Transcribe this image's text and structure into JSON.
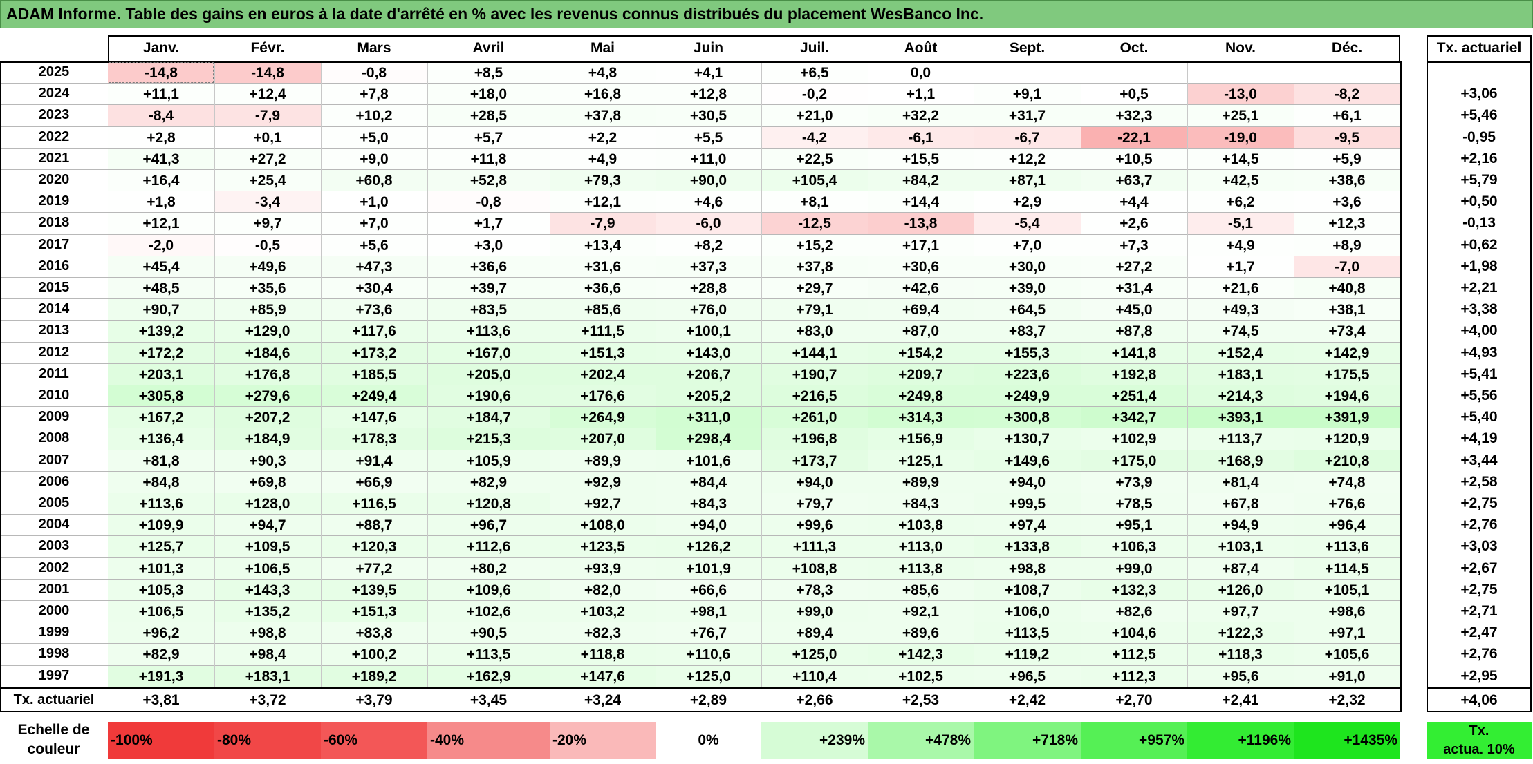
{
  "title": "ADAM Informe. Table des gains en euros à la date d'arrêté en % avec les revenus connus distribués du placement WesBanco Inc.",
  "months": [
    "Janv.",
    "Févr.",
    "Mars",
    "Avril",
    "Mai",
    "Juin",
    "Juil.",
    "Août",
    "Sept.",
    "Oct.",
    "Nov.",
    "Déc."
  ],
  "rate_header": "Tx. actuariel",
  "rows": [
    {
      "year": "2025",
      "values": [
        "-14,8",
        "-14,8",
        "-0,8",
        "+8,5",
        "+4,8",
        "+4,1",
        "+6,5",
        "0,0",
        "",
        "",
        "",
        ""
      ],
      "rate": ""
    },
    {
      "year": "2024",
      "values": [
        "+11,1",
        "+12,4",
        "+7,8",
        "+18,0",
        "+16,8",
        "+12,8",
        "-0,2",
        "+1,1",
        "+9,1",
        "+0,5",
        "-13,0",
        "-8,2"
      ],
      "rate": "+3,06"
    },
    {
      "year": "2023",
      "values": [
        "-8,4",
        "-7,9",
        "+10,2",
        "+28,5",
        "+37,8",
        "+30,5",
        "+21,0",
        "+32,2",
        "+31,7",
        "+32,3",
        "+25,1",
        "+6,1"
      ],
      "rate": "+5,46"
    },
    {
      "year": "2022",
      "values": [
        "+2,8",
        "+0,1",
        "+5,0",
        "+5,7",
        "+2,2",
        "+5,5",
        "-4,2",
        "-6,1",
        "-6,7",
        "-22,1",
        "-19,0",
        "-9,5"
      ],
      "rate": "-0,95"
    },
    {
      "year": "2021",
      "values": [
        "+41,3",
        "+27,2",
        "+9,0",
        "+11,8",
        "+4,9",
        "+11,0",
        "+22,5",
        "+15,5",
        "+12,2",
        "+10,5",
        "+14,5",
        "+5,9"
      ],
      "rate": "+2,16"
    },
    {
      "year": "2020",
      "values": [
        "+16,4",
        "+25,4",
        "+60,8",
        "+52,8",
        "+79,3",
        "+90,0",
        "+105,4",
        "+84,2",
        "+87,1",
        "+63,7",
        "+42,5",
        "+38,6"
      ],
      "rate": "+5,79"
    },
    {
      "year": "2019",
      "values": [
        "+1,8",
        "-3,4",
        "+1,0",
        "-0,8",
        "+12,1",
        "+4,6",
        "+8,1",
        "+14,4",
        "+2,9",
        "+4,4",
        "+6,2",
        "+3,6"
      ],
      "rate": "+0,50"
    },
    {
      "year": "2018",
      "values": [
        "+12,1",
        "+9,7",
        "+7,0",
        "+1,7",
        "-7,9",
        "-6,0",
        "-12,5",
        "-13,8",
        "-5,4",
        "+2,6",
        "-5,1",
        "+12,3"
      ],
      "rate": "-0,13"
    },
    {
      "year": "2017",
      "values": [
        "-2,0",
        "-0,5",
        "+5,6",
        "+3,0",
        "+13,4",
        "+8,2",
        "+15,2",
        "+17,1",
        "+7,0",
        "+7,3",
        "+4,9",
        "+8,9"
      ],
      "rate": "+0,62"
    },
    {
      "year": "2016",
      "values": [
        "+45,4",
        "+49,6",
        "+47,3",
        "+36,6",
        "+31,6",
        "+37,3",
        "+37,8",
        "+30,6",
        "+30,0",
        "+27,2",
        "+1,7",
        "-7,0"
      ],
      "rate": "+1,98"
    },
    {
      "year": "2015",
      "values": [
        "+48,5",
        "+35,6",
        "+30,4",
        "+39,7",
        "+36,6",
        "+28,8",
        "+29,7",
        "+42,6",
        "+39,0",
        "+31,4",
        "+21,6",
        "+40,8"
      ],
      "rate": "+2,21"
    },
    {
      "year": "2014",
      "values": [
        "+90,7",
        "+85,9",
        "+73,6",
        "+83,5",
        "+85,6",
        "+76,0",
        "+79,1",
        "+69,4",
        "+64,5",
        "+45,0",
        "+49,3",
        "+38,1"
      ],
      "rate": "+3,38"
    },
    {
      "year": "2013",
      "values": [
        "+139,2",
        "+129,0",
        "+117,6",
        "+113,6",
        "+111,5",
        "+100,1",
        "+83,0",
        "+87,0",
        "+83,7",
        "+87,8",
        "+74,5",
        "+73,4"
      ],
      "rate": "+4,00"
    },
    {
      "year": "2012",
      "values": [
        "+172,2",
        "+184,6",
        "+173,2",
        "+167,0",
        "+151,3",
        "+143,0",
        "+144,1",
        "+154,2",
        "+155,3",
        "+141,8",
        "+152,4",
        "+142,9"
      ],
      "rate": "+4,93"
    },
    {
      "year": "2011",
      "values": [
        "+203,1",
        "+176,8",
        "+185,5",
        "+205,0",
        "+202,4",
        "+206,7",
        "+190,7",
        "+209,7",
        "+223,6",
        "+192,8",
        "+183,1",
        "+175,5"
      ],
      "rate": "+5,41"
    },
    {
      "year": "2010",
      "values": [
        "+305,8",
        "+279,6",
        "+249,4",
        "+190,6",
        "+176,6",
        "+205,2",
        "+216,5",
        "+249,8",
        "+249,9",
        "+251,4",
        "+214,3",
        "+194,6"
      ],
      "rate": "+5,56"
    },
    {
      "year": "2009",
      "values": [
        "+167,2",
        "+207,2",
        "+147,6",
        "+184,7",
        "+264,9",
        "+311,0",
        "+261,0",
        "+314,3",
        "+300,8",
        "+342,7",
        "+393,1",
        "+391,9"
      ],
      "rate": "+5,40"
    },
    {
      "year": "2008",
      "values": [
        "+136,4",
        "+184,9",
        "+178,3",
        "+215,3",
        "+207,0",
        "+298,4",
        "+196,8",
        "+156,9",
        "+130,7",
        "+102,9",
        "+113,7",
        "+120,9"
      ],
      "rate": "+4,19"
    },
    {
      "year": "2007",
      "values": [
        "+81,8",
        "+90,3",
        "+91,4",
        "+105,9",
        "+89,9",
        "+101,6",
        "+173,7",
        "+125,1",
        "+149,6",
        "+175,0",
        "+168,9",
        "+210,8"
      ],
      "rate": "+3,44"
    },
    {
      "year": "2006",
      "values": [
        "+84,8",
        "+69,8",
        "+66,9",
        "+82,9",
        "+92,9",
        "+84,4",
        "+94,0",
        "+89,9",
        "+94,0",
        "+73,9",
        "+81,4",
        "+74,8"
      ],
      "rate": "+2,58"
    },
    {
      "year": "2005",
      "values": [
        "+113,6",
        "+128,0",
        "+116,5",
        "+120,8",
        "+92,7",
        "+84,3",
        "+79,7",
        "+84,3",
        "+99,5",
        "+78,5",
        "+67,8",
        "+76,6"
      ],
      "rate": "+2,75"
    },
    {
      "year": "2004",
      "values": [
        "+109,9",
        "+94,7",
        "+88,7",
        "+96,7",
        "+108,0",
        "+94,0",
        "+99,6",
        "+103,8",
        "+97,4",
        "+95,1",
        "+94,9",
        "+96,4"
      ],
      "rate": "+2,76"
    },
    {
      "year": "2003",
      "values": [
        "+125,7",
        "+109,5",
        "+120,3",
        "+112,6",
        "+123,5",
        "+126,2",
        "+111,3",
        "+113,0",
        "+133,8",
        "+106,3",
        "+103,1",
        "+113,6"
      ],
      "rate": "+3,03"
    },
    {
      "year": "2002",
      "values": [
        "+101,3",
        "+106,5",
        "+77,2",
        "+80,2",
        "+93,9",
        "+101,9",
        "+108,8",
        "+113,8",
        "+98,8",
        "+99,0",
        "+87,4",
        "+114,5"
      ],
      "rate": "+2,67"
    },
    {
      "year": "2001",
      "values": [
        "+105,3",
        "+143,3",
        "+139,5",
        "+109,6",
        "+82,0",
        "+66,6",
        "+78,3",
        "+85,6",
        "+108,7",
        "+132,3",
        "+126,0",
        "+105,1"
      ],
      "rate": "+2,75"
    },
    {
      "year": "2000",
      "values": [
        "+106,5",
        "+135,2",
        "+151,3",
        "+102,6",
        "+103,2",
        "+98,1",
        "+99,0",
        "+92,1",
        "+106,0",
        "+82,6",
        "+97,7",
        "+98,6"
      ],
      "rate": "+2,71"
    },
    {
      "year": "1999",
      "values": [
        "+96,2",
        "+98,8",
        "+83,8",
        "+90,5",
        "+82,3",
        "+76,7",
        "+89,4",
        "+89,6",
        "+113,5",
        "+104,6",
        "+122,3",
        "+97,1"
      ],
      "rate": "+2,47"
    },
    {
      "year": "1998",
      "values": [
        "+82,9",
        "+98,4",
        "+100,2",
        "+113,5",
        "+118,8",
        "+110,6",
        "+125,0",
        "+142,3",
        "+119,2",
        "+112,5",
        "+118,3",
        "+105,6"
      ],
      "rate": "+2,76"
    },
    {
      "year": "1997",
      "values": [
        "+191,3",
        "+183,1",
        "+189,2",
        "+162,9",
        "+147,6",
        "+125,0",
        "+110,4",
        "+102,5",
        "+96,5",
        "+112,3",
        "+95,6",
        "+91,0"
      ],
      "rate": "+2,95"
    }
  ],
  "footer": {
    "label": "Tx. actuariel",
    "values": [
      "+3,81",
      "+3,72",
      "+3,79",
      "+3,45",
      "+3,24",
      "+2,89",
      "+2,66",
      "+2,53",
      "+2,42",
      "+2,70",
      "+2,41",
      "+2,32"
    ],
    "rate": "+4,06"
  },
  "scale": {
    "label_line1": "Echelle de",
    "label_line2": "couleur",
    "items": [
      {
        "text": "-100%",
        "color": "#f03a3a",
        "align": "left"
      },
      {
        "text": "-80%",
        "color": "#f14747",
        "align": "left"
      },
      {
        "text": "-60%",
        "color": "#f35757",
        "align": "left"
      },
      {
        "text": "-40%",
        "color": "#f68a8a",
        "align": "left"
      },
      {
        "text": "-20%",
        "color": "#fab9b9",
        "align": "left"
      },
      {
        "text": "0%",
        "color": "#ffffff",
        "align": "center"
      },
      {
        "text": "+239%",
        "color": "#d6fcd6",
        "align": "right"
      },
      {
        "text": "+478%",
        "color": "#a9f8a9",
        "align": "right"
      },
      {
        "text": "+718%",
        "color": "#7ff47f",
        "align": "right"
      },
      {
        "text": "+957%",
        "color": "#55f055",
        "align": "right"
      },
      {
        "text": "+1196%",
        "color": "#33ec33",
        "align": "right"
      },
      {
        "text": "+1435%",
        "color": "#1ee51e",
        "align": "right"
      }
    ],
    "actuarial_line1": "Tx.",
    "actuarial_line2": "actua. 10%"
  },
  "colors": {
    "title_bg": "#80c97e",
    "scale_neg_max": "#f03a3a",
    "scale_pos_max": "#1ee51e",
    "actuarial_badge": "#33ee33"
  }
}
